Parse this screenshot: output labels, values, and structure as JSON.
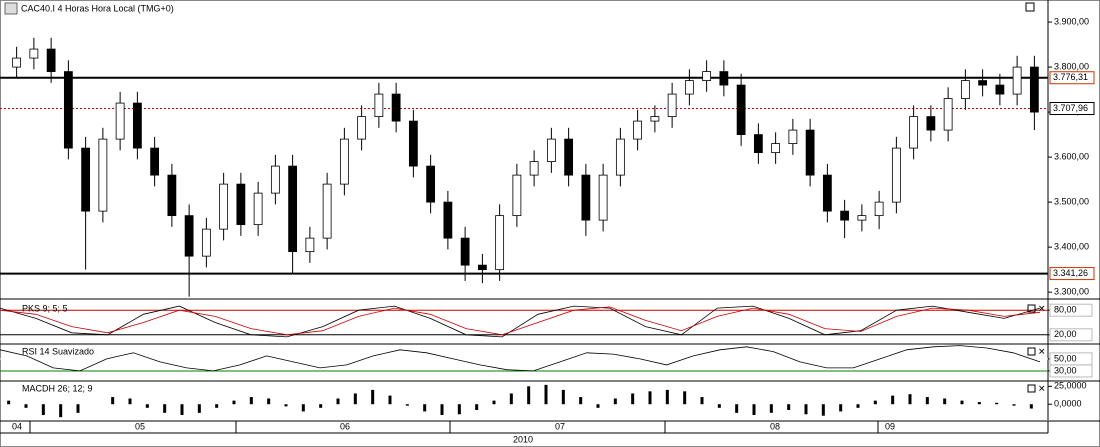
{
  "header": {
    "title": "CAC40.I 4 Horas Hora Local (TMG+0)"
  },
  "chart_data": [
    {
      "type": "candlestick",
      "up_color": "#ffffff",
      "down_color": "#000000",
      "open": [
        3800,
        3820,
        3840,
        3790,
        3620,
        3480,
        3640,
        3720,
        3620,
        3560,
        3470,
        3380,
        3440,
        3540,
        3450,
        3520,
        3580,
        3390,
        3420,
        3540,
        3640,
        3690,
        3740,
        3680,
        3580,
        3500,
        3420,
        3360,
        3350,
        3470,
        3560,
        3590,
        3640,
        3560,
        3460,
        3560,
        3640,
        3680,
        3690,
        3740,
        3770,
        3790,
        3760,
        3650,
        3610,
        3630,
        3660,
        3560,
        3480,
        3460,
        3470,
        3500,
        3620,
        3690,
        3660,
        3730,
        3770,
        3760,
        3740,
        3800
      ],
      "high": [
        3845,
        3865,
        3865,
        3815,
        3645,
        3665,
        3745,
        3745,
        3645,
        3585,
        3495,
        3465,
        3565,
        3565,
        3545,
        3605,
        3605,
        3445,
        3565,
        3665,
        3715,
        3765,
        3765,
        3705,
        3605,
        3525,
        3445,
        3385,
        3495,
        3585,
        3615,
        3665,
        3665,
        3585,
        3585,
        3665,
        3705,
        3715,
        3765,
        3795,
        3815,
        3815,
        3785,
        3675,
        3655,
        3685,
        3685,
        3585,
        3505,
        3495,
        3525,
        3645,
        3715,
        3715,
        3755,
        3795,
        3795,
        3785,
        3825,
        3825
      ],
      "low": [
        3775,
        3795,
        3765,
        3595,
        3350,
        3455,
        3615,
        3595,
        3535,
        3445,
        3290,
        3355,
        3415,
        3425,
        3425,
        3495,
        3340,
        3365,
        3395,
        3515,
        3615,
        3665,
        3655,
        3555,
        3475,
        3395,
        3325,
        3320,
        3325,
        3445,
        3535,
        3565,
        3535,
        3425,
        3435,
        3535,
        3615,
        3655,
        3665,
        3715,
        3745,
        3735,
        3625,
        3585,
        3585,
        3605,
        3535,
        3455,
        3420,
        3435,
        3440,
        3475,
        3595,
        3635,
        3635,
        3705,
        3735,
        3715,
        3715,
        3660
      ],
      "close": [
        3820,
        3840,
        3790,
        3620,
        3480,
        3640,
        3720,
        3620,
        3560,
        3470,
        3380,
        3440,
        3540,
        3450,
        3520,
        3580,
        3390,
        3420,
        3540,
        3640,
        3690,
        3740,
        3680,
        3580,
        3500,
        3420,
        3360,
        3350,
        3470,
        3560,
        3590,
        3640,
        3560,
        3460,
        3560,
        3640,
        3680,
        3690,
        3740,
        3770,
        3790,
        3760,
        3650,
        3610,
        3630,
        3660,
        3560,
        3480,
        3460,
        3470,
        3500,
        3620,
        3690,
        3660,
        3730,
        3770,
        3760,
        3740,
        3800,
        3700
      ],
      "ylim": [
        3287,
        3949
      ],
      "yticks": [
        {
          "value": 3900,
          "label": "3.900,00"
        },
        {
          "value": 3800,
          "label": "3.800,00"
        },
        {
          "value": 3700,
          "label": "3.700,00"
        },
        {
          "value": 3600,
          "label": "3.600,00"
        },
        {
          "value": 3500,
          "label": "3.500,00"
        },
        {
          "value": 3400,
          "label": "3.400,00"
        },
        {
          "value": 3300,
          "label": "3.300,00"
        }
      ],
      "levels": [
        {
          "value": 3776.31,
          "label": "3.776,31",
          "color": "#000000",
          "label_color": "#cc3300",
          "dashed": false
        },
        {
          "value": 3707.96,
          "label": "3.707,96",
          "color": "#cc0000",
          "label_color": "#000000",
          "dashed": true
        },
        {
          "value": 3341.26,
          "label": "3.341,26",
          "color": "#000000",
          "label_color": "#cc3300",
          "dashed": false
        }
      ]
    },
    {
      "type": "line",
      "title": "PKS 9; 5; 5",
      "ylim": [
        0,
        100
      ],
      "yticks": [
        {
          "value": 80,
          "label": "80,00"
        },
        {
          "value": 20,
          "label": "20,00"
        }
      ],
      "guide_colors": [
        "#cc0000",
        "#000000"
      ],
      "series": [
        {
          "color": "#000000",
          "values": [
            85,
            60,
            25,
            20,
            70,
            90,
            50,
            20,
            15,
            40,
            80,
            90,
            60,
            20,
            15,
            70,
            90,
            85,
            40,
            20,
            85,
            90,
            60,
            20,
            30,
            80,
            90,
            75,
            60,
            85
          ]
        },
        {
          "color": "#cc0000",
          "values": [
            80,
            70,
            40,
            25,
            50,
            80,
            65,
            35,
            20,
            30,
            65,
            85,
            70,
            35,
            20,
            50,
            80,
            88,
            55,
            30,
            65,
            85,
            70,
            35,
            28,
            65,
            85,
            80,
            65,
            75
          ]
        }
      ]
    },
    {
      "type": "line",
      "title": "RSI 14 Suavizado",
      "ylim": [
        15,
        73
      ],
      "yticks": [
        {
          "value": 50,
          "label": "50,00"
        },
        {
          "value": 30,
          "label": "30,00"
        }
      ],
      "guide_colors": [
        "#ffffff",
        "#008000"
      ],
      "series": [
        {
          "color": "#000000",
          "values": [
            65,
            55,
            35,
            30,
            50,
            60,
            45,
            35,
            30,
            40,
            55,
            45,
            35,
            40,
            55,
            65,
            60,
            50,
            40,
            32,
            30,
            45,
            60,
            58,
            50,
            40,
            55,
            65,
            70,
            62,
            45,
            35,
            35,
            50,
            65,
            70,
            72,
            68,
            60,
            45
          ]
        }
      ]
    },
    {
      "type": "bar",
      "title": "MACDH 26; 12; 9",
      "color": "#000000",
      "ylim": [
        -22,
        31
      ],
      "yticks": [
        {
          "value": 25,
          "label": "25,0000"
        },
        {
          "value": 0,
          "label": "0,0000"
        }
      ],
      "values": [
        5,
        -5,
        -15,
        -18,
        -12,
        0,
        10,
        8,
        -5,
        -12,
        -15,
        -12,
        -5,
        5,
        10,
        8,
        -3,
        -10,
        -5,
        8,
        15,
        20,
        12,
        -2,
        -10,
        -15,
        -14,
        -8,
        5,
        15,
        25,
        27,
        20,
        10,
        -5,
        8,
        15,
        18,
        20,
        18,
        10,
        -5,
        -12,
        -15,
        -12,
        -8,
        -14,
        -16,
        -10,
        -5,
        5,
        12,
        14,
        10,
        8,
        5,
        3,
        2,
        -2,
        -6
      ]
    }
  ],
  "time_axis": {
    "labels": [
      "04",
      "05",
      "06",
      "07",
      "08",
      "09"
    ],
    "year": "2010"
  }
}
